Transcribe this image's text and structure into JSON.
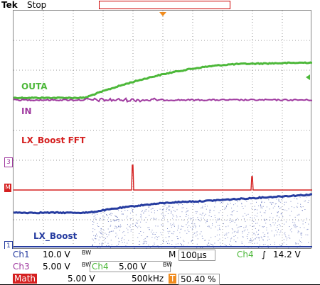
{
  "header": {
    "brand": "Tek",
    "status": "Stop"
  },
  "traces": {
    "outa": {
      "label": "OUTA",
      "color": "#4db83a"
    },
    "in": {
      "label": "IN",
      "color": "#a03aa0"
    },
    "fft": {
      "label": "LX_Boost FFT",
      "color": "#d52020"
    },
    "lx": {
      "label": "LX_Boost",
      "color": "#263ca0"
    }
  },
  "markers": {
    "ch3": "3",
    "math": "M",
    "ch1": "1"
  },
  "readout": {
    "ch1_label": "Ch1",
    "ch1_scale": "10.0 V",
    "bw1": "BW",
    "timebase_label": "M",
    "timebase": "100µs",
    "trigger_ch": "Ch4",
    "trigger_slope": "∫",
    "trigger_level": "14.2 V",
    "ch3_label": "Ch3",
    "ch3_scale": "5.00 V",
    "bw3": "BW",
    "ch4_label": "Ch4",
    "ch4_scale": "5.00 V",
    "bw4": "BW",
    "math_label": "Math",
    "math_scale": "5.00 V",
    "math_freq": "500kHz",
    "trigger_pos_icon": "T",
    "trigger_pos": "50.40 %"
  }
}
